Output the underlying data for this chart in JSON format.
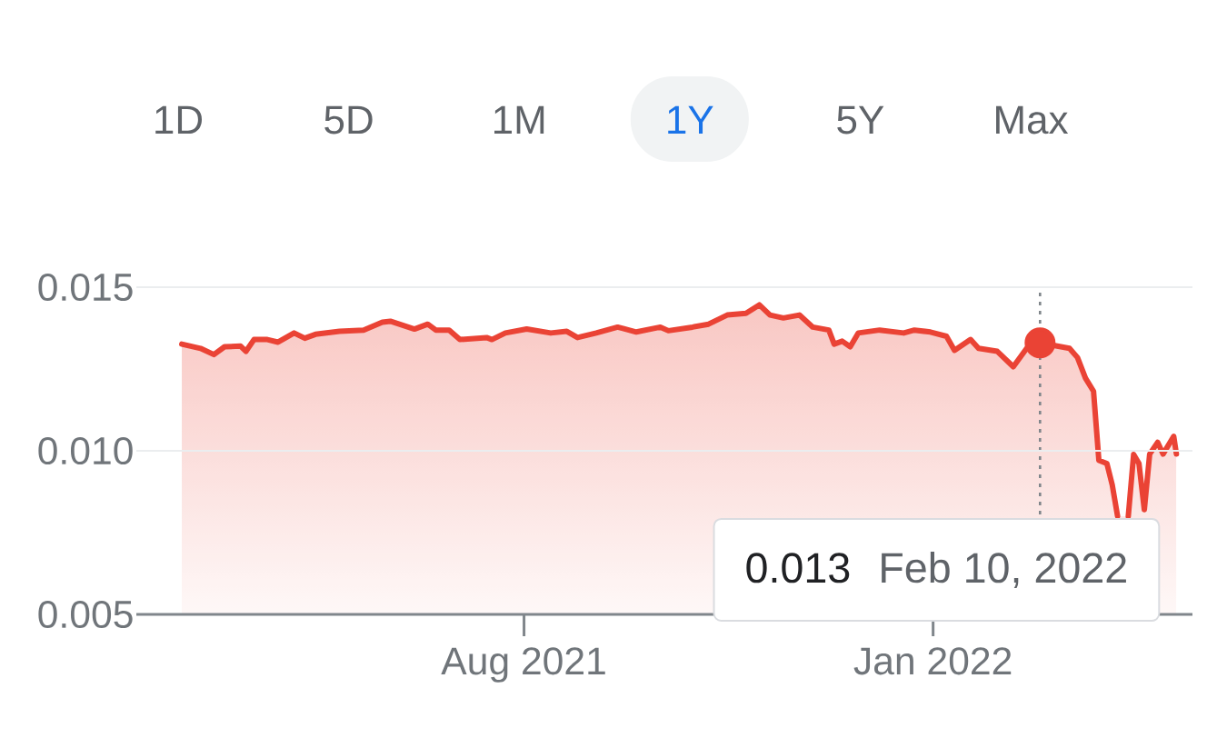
{
  "chart_data": {
    "type": "line",
    "series": [
      {
        "color": "#ea4335",
        "x": [
          "2021-03-26",
          "2021-04-02",
          "2021-04-07",
          "2021-04-11",
          "2021-04-17",
          "2021-04-19",
          "2021-04-22",
          "2021-04-27",
          "2021-05-01",
          "2021-05-07",
          "2021-05-11",
          "2021-05-15",
          "2021-05-24",
          "2021-06-02",
          "2021-06-09",
          "2021-06-12",
          "2021-06-21",
          "2021-06-26",
          "2021-06-29",
          "2021-07-04",
          "2021-07-08",
          "2021-07-18",
          "2021-07-20",
          "2021-07-25",
          "2021-08-02",
          "2021-08-11",
          "2021-08-17",
          "2021-08-21",
          "2021-08-28",
          "2021-09-05",
          "2021-09-07",
          "2021-09-12",
          "2021-09-21",
          "2021-09-24",
          "2021-10-03",
          "2021-10-09",
          "2021-10-16",
          "2021-10-23",
          "2021-10-28",
          "2021-11-01",
          "2021-11-06",
          "2021-11-12",
          "2021-11-17",
          "2021-11-23",
          "2021-11-25",
          "2021-11-28",
          "2021-12-01",
          "2021-12-04",
          "2021-12-12",
          "2021-12-21",
          "2021-12-25",
          "2021-12-31",
          "2022-01-06",
          "2022-01-09",
          "2022-01-15",
          "2022-01-18",
          "2022-01-25",
          "2022-01-31",
          "2022-02-05",
          "2022-02-10",
          "2022-02-21",
          "2022-02-24",
          "2022-02-27",
          "2022-03-02",
          "2022-03-04",
          "2022-03-07",
          "2022-03-09",
          "2022-03-11",
          "2022-03-13",
          "2022-03-14",
          "2022-03-15",
          "2022-03-17",
          "2022-03-19",
          "2022-03-21",
          "2022-03-23",
          "2022-03-26",
          "2022-03-28",
          "2022-03-30",
          "2022-04-01",
          "2022-04-02"
        ],
        "values": [
          0.01326,
          0.01313,
          0.01294,
          0.01318,
          0.0132,
          0.01304,
          0.0134,
          0.0134,
          0.01332,
          0.0136,
          0.01344,
          0.01356,
          0.01365,
          0.01369,
          0.01393,
          0.01396,
          0.01372,
          0.01387,
          0.01369,
          0.01369,
          0.0134,
          0.01346,
          0.0134,
          0.0136,
          0.01372,
          0.0136,
          0.01365,
          0.01346,
          0.0136,
          0.01378,
          0.01374,
          0.01363,
          0.01378,
          0.01367,
          0.01378,
          0.01387,
          0.01415,
          0.0142,
          0.01446,
          0.01415,
          0.01406,
          0.01415,
          0.01378,
          0.01369,
          0.01326,
          0.01335,
          0.01318,
          0.0136,
          0.01369,
          0.0136,
          0.01369,
          0.01363,
          0.0135,
          0.01307,
          0.0134,
          0.01313,
          0.01304,
          0.01257,
          0.01313,
          0.0133,
          0.01313,
          0.01285,
          0.01222,
          0.01182,
          0.00971,
          0.00961,
          0.00896,
          0.008,
          null,
          null,
          0.008,
          0.00989,
          0.00961,
          0.0082,
          0.0099,
          0.01026,
          0.0099,
          0.01017,
          0.01044,
          0.0099
        ]
      },
      {
        "type": "scatter",
        "color": "#ea4335",
        "marker": "circle",
        "x": [
          "2022-02-10"
        ],
        "values": [
          0.0133
        ]
      }
    ],
    "xlim": [
      "2021-03-09",
      "2022-04-08"
    ],
    "ylim": [
      0.005,
      0.015
    ],
    "xticks": [
      {
        "value": "2021-08-01",
        "label": "Aug 2021"
      },
      {
        "value": "2022-01-01",
        "label": "Jan 2022"
      }
    ],
    "yticks": [
      0.005,
      {
        "value": 0.01,
        "label": "0.010"
      },
      0.015
    ],
    "grid": "y",
    "ref_lines": [
      {
        "axis": "x",
        "value": "2022-02-10",
        "line_style": "dotted",
        "color": "#80868b"
      }
    ],
    "annotations": [
      "1D",
      "5D",
      "1M",
      "1Y",
      "5Y",
      "Max",
      "0.013",
      "Feb 10, 2022"
    ]
  }
}
